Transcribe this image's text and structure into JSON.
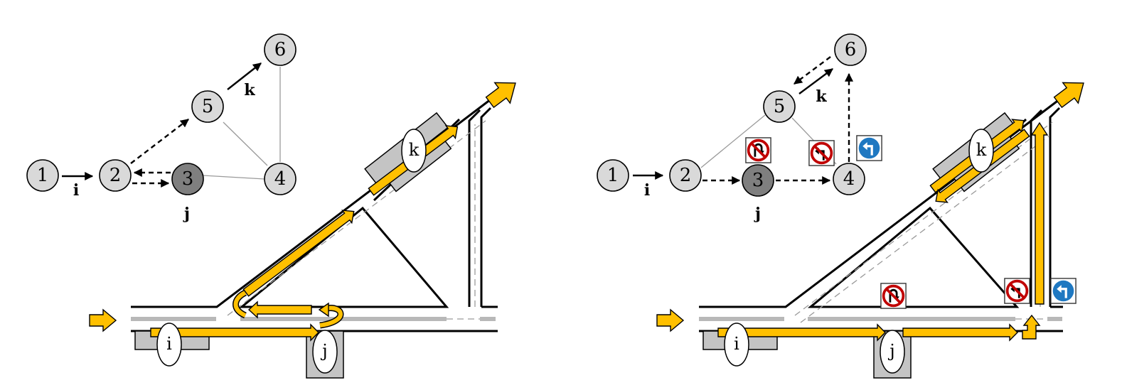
{
  "colors": {
    "flow": "#ffc000",
    "node_fill": "#d9d9d9",
    "node_highlight": "#7f7f7f",
    "bay": "#c4c4c4",
    "sign_red": "#c00000",
    "sign_blue": "#1f78c1"
  },
  "left_panel": {
    "graph": {
      "nodes": [
        {
          "id": "1",
          "highlight": false
        },
        {
          "id": "2",
          "highlight": false
        },
        {
          "id": "3",
          "highlight": true
        },
        {
          "id": "4",
          "highlight": false
        },
        {
          "id": "5",
          "highlight": false
        },
        {
          "id": "6",
          "highlight": false
        }
      ],
      "edges": [
        {
          "from": "1",
          "to": "2",
          "style": "solid-arrow",
          "label": "i"
        },
        {
          "from": "2",
          "to": "3",
          "style": "dashed-arrow",
          "label": ""
        },
        {
          "from": "3",
          "to": "2",
          "style": "dashed-arrow",
          "label": ""
        },
        {
          "from": "2",
          "to": "5",
          "style": "dashed-arrow",
          "label": ""
        },
        {
          "from": "5",
          "to": "6",
          "style": "solid-arrow",
          "label": "k"
        },
        {
          "from": "3",
          "to": "4",
          "style": "plain",
          "label": ""
        },
        {
          "from": "5",
          "to": "4",
          "style": "plain",
          "label": ""
        },
        {
          "from": "6",
          "to": "4",
          "style": "plain",
          "label": ""
        }
      ],
      "node_label_j": "j"
    },
    "road_tags": [
      "i",
      "j",
      "k"
    ]
  },
  "right_panel": {
    "graph": {
      "nodes": [
        {
          "id": "1",
          "highlight": false
        },
        {
          "id": "2",
          "highlight": false
        },
        {
          "id": "3",
          "highlight": true
        },
        {
          "id": "4",
          "highlight": false
        },
        {
          "id": "5",
          "highlight": false
        },
        {
          "id": "6",
          "highlight": false
        }
      ],
      "edges": [
        {
          "from": "1",
          "to": "2",
          "style": "solid-arrow",
          "label": "i"
        },
        {
          "from": "2",
          "to": "3",
          "style": "dashed-arrow",
          "label": ""
        },
        {
          "from": "3",
          "to": "4",
          "style": "dashed-arrow",
          "label": ""
        },
        {
          "from": "4",
          "to": "6",
          "style": "dashed-arrow",
          "label": ""
        },
        {
          "from": "6",
          "to": "5",
          "style": "dashed-arrow",
          "label": ""
        },
        {
          "from": "5",
          "to": "6",
          "style": "solid-arrow",
          "label": "k"
        },
        {
          "from": "2",
          "to": "5",
          "style": "plain",
          "label": ""
        },
        {
          "from": "5",
          "to": "4",
          "style": "plain",
          "label": ""
        }
      ],
      "node_label_j": "j"
    },
    "road_tags": [
      "i",
      "j",
      "k"
    ],
    "signs": [
      {
        "type": "no-u-turn",
        "icon": "no-u-turn-icon"
      },
      {
        "type": "no-left-turn",
        "icon": "no-left-turn-icon"
      },
      {
        "type": "left-turn-only",
        "icon": "left-turn-icon"
      }
    ]
  }
}
